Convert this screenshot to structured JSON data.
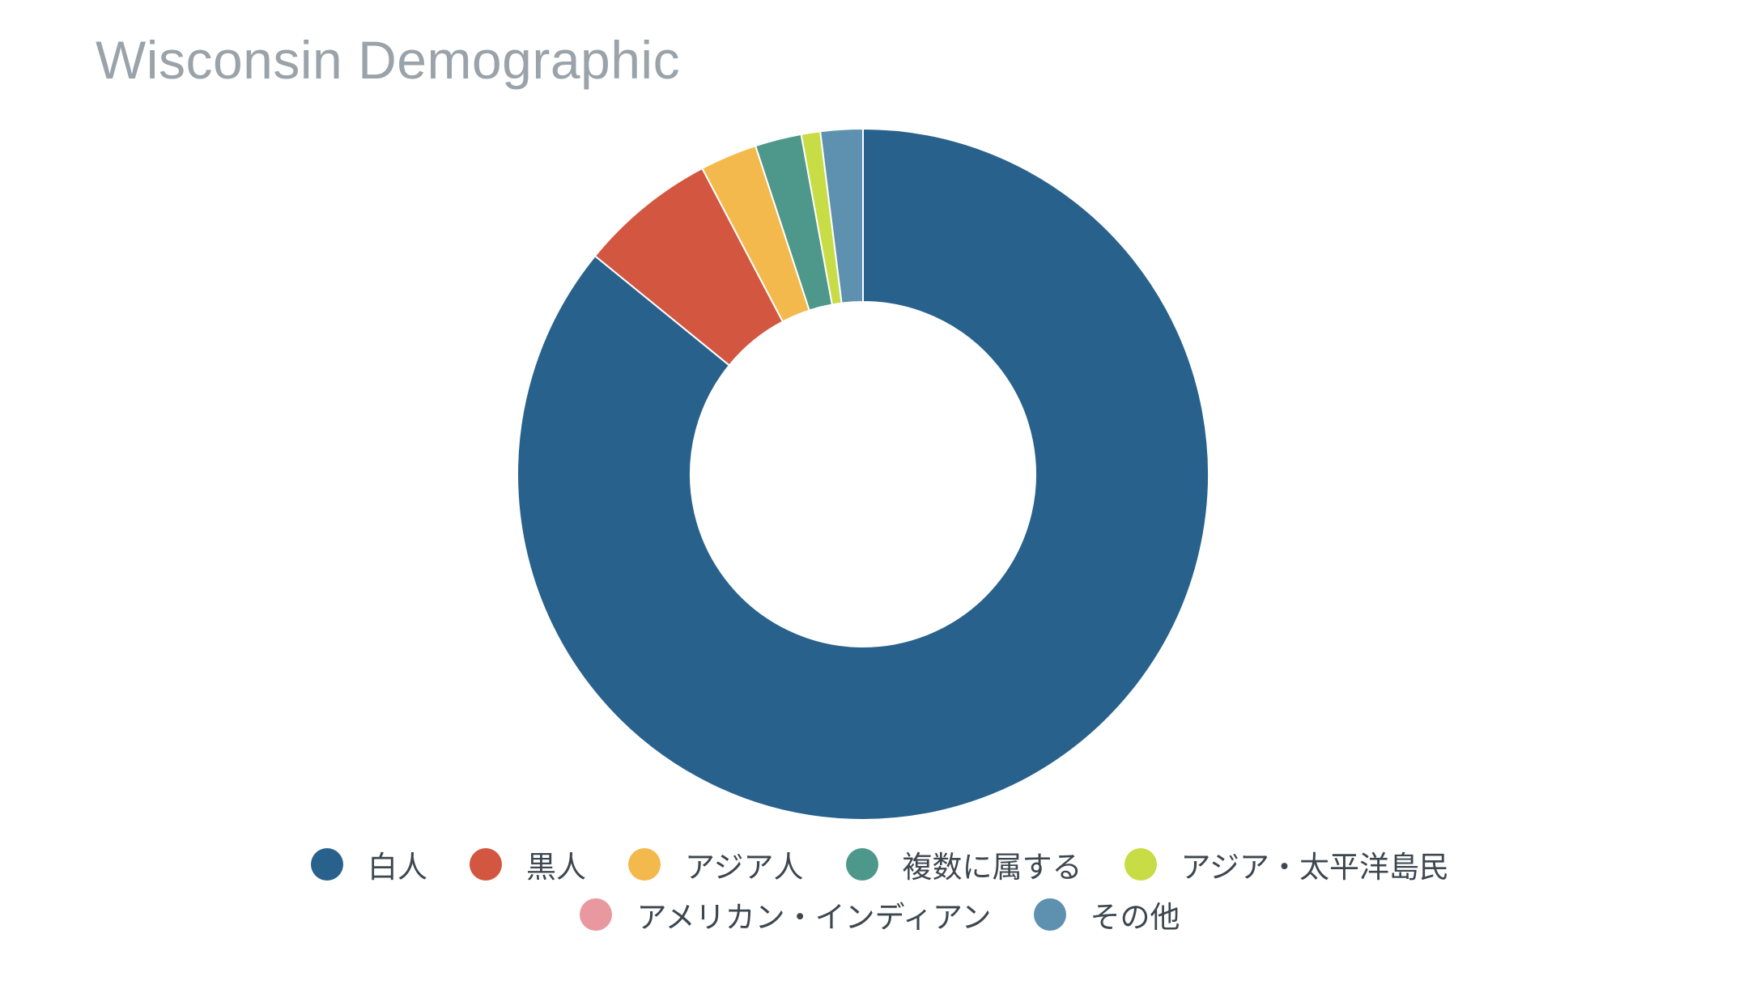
{
  "chart_data": {
    "type": "pie",
    "variant": "donut",
    "title": "Wisconsin Demographic",
    "legend_position": "bottom",
    "series": [
      {
        "name": "白人",
        "value": 87.0,
        "color": "#28628c"
      },
      {
        "name": "黒人",
        "value": 6.5,
        "color": "#d35640"
      },
      {
        "name": "アジア人",
        "value": 2.7,
        "color": "#f4b94c"
      },
      {
        "name": "複数に属する",
        "value": 2.2,
        "color": "#4d988a"
      },
      {
        "name": "アジア・太平洋島民",
        "value": 0.9,
        "color": "#c8dc46"
      },
      {
        "name": "アメリカン・インディアン",
        "value": 0.0,
        "color": "#e8989e"
      },
      {
        "name": "その他",
        "value": 2.0,
        "color": "#5e91b0"
      }
    ]
  }
}
